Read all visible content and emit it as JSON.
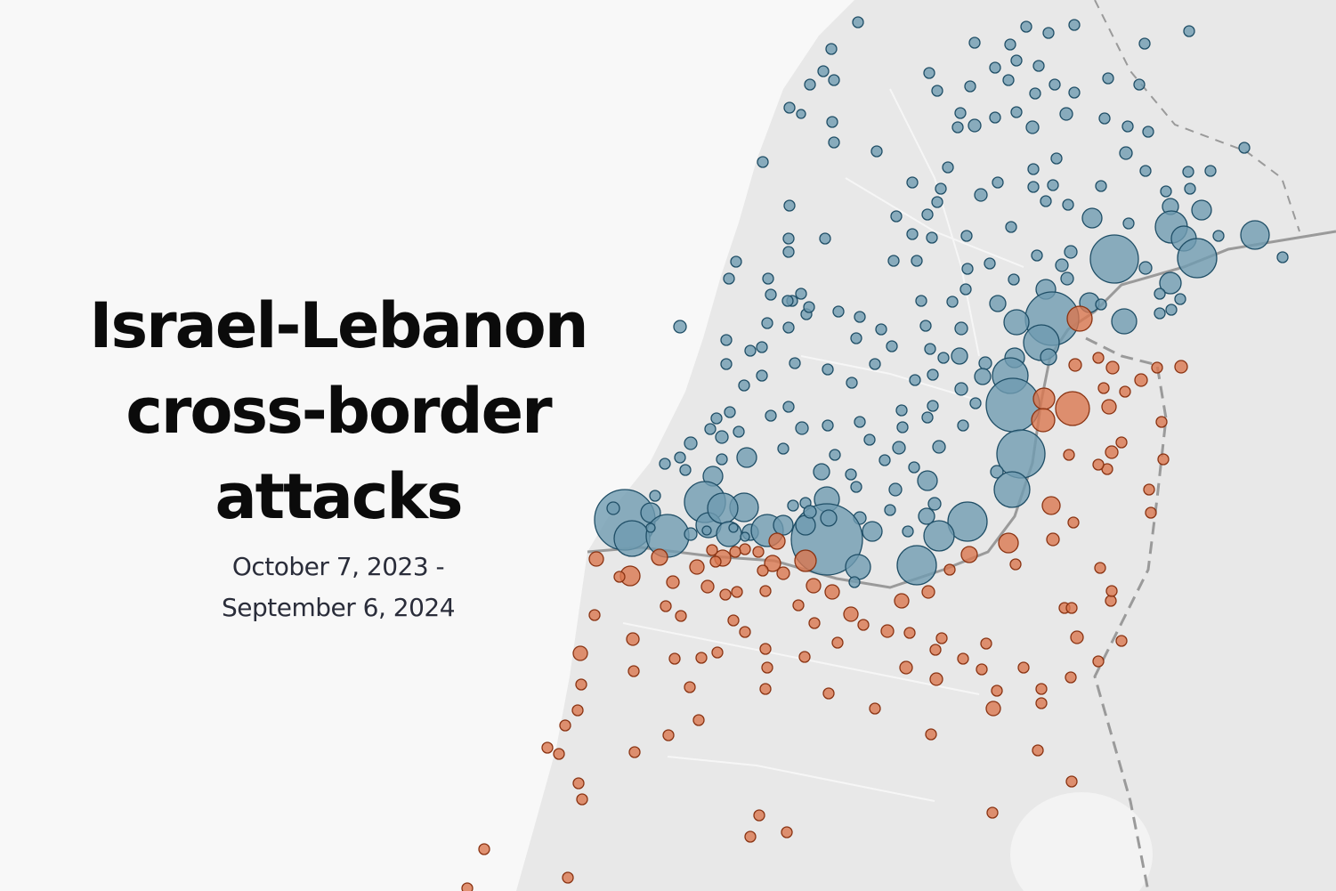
{
  "title_lines": [
    "Israel-Lebanon",
    "cross-border",
    "attacks"
  ],
  "subtitle_lines": [
    "October 7, 2023 -",
    "September 6, 2024"
  ],
  "legend_colors": {
    "attacks_on_lebanon": "#6f9bb0",
    "attacks_on_lebanon_stroke": "#1f4e66",
    "attacks_on_israel": "#d9774f",
    "attacks_on_israel_stroke": "#8a3312"
  },
  "map": {
    "land": "#e8e8e8",
    "sea": "#f8f8f8",
    "border": "#9a9a9a",
    "roads": "#f6f6f6"
  }
}
